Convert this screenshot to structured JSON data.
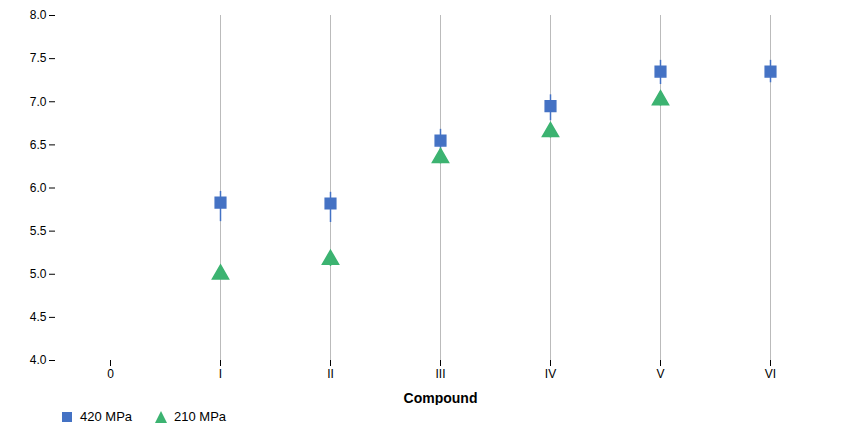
{
  "chart_data": {
    "type": "scatter",
    "xlabel": "Compound",
    "categories": [
      "0",
      "I",
      "II",
      "III",
      "IV",
      "V",
      "VI"
    ],
    "series": [
      {
        "name": "420 MPa",
        "color": "#4472C4",
        "marker": "square",
        "values": [
          null,
          5.83,
          5.82,
          6.55,
          6.95,
          7.35,
          7.35
        ],
        "err_low": [
          null,
          0.22,
          0.22,
          0.17,
          0.17,
          0.15,
          0.13
        ],
        "err_high": [
          null,
          0.13,
          0.13,
          0.13,
          0.13,
          0.13,
          0.13
        ]
      },
      {
        "name": "210 MPa",
        "color": "#3CB371",
        "marker": "triangle",
        "values": [
          null,
          5.0,
          5.17,
          6.35,
          6.65,
          7.02,
          null
        ],
        "err_low": [
          null,
          0.06,
          0.08,
          0.07,
          0.07,
          0.07,
          null
        ],
        "err_high": [
          null,
          0.06,
          0.05,
          0.05,
          0.05,
          0.05,
          null
        ]
      }
    ],
    "ylim": [
      4,
      8
    ],
    "yticks": [
      4,
      4.5,
      5,
      5.5,
      6,
      6.5,
      7,
      7.5,
      8
    ],
    "grid": false,
    "legend": "lower left"
  }
}
